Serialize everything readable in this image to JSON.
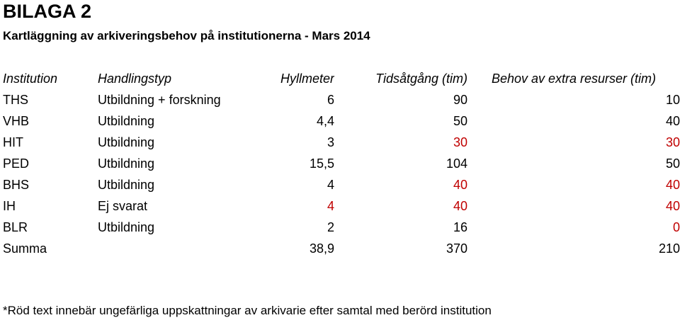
{
  "title": "BILAGA 2",
  "subtitle": "Kartläggning av arkiveringsbehov på institutionerna - Mars 2014",
  "colors": {
    "text": "#000000",
    "estimate": "#c00000"
  },
  "table": {
    "headers": [
      "Institution",
      "Handlingstyp",
      "Hyllmeter",
      "Tidsåtgång (tim)",
      "Behov av extra resurser (tim)"
    ],
    "rows": [
      {
        "institution": "THS",
        "type": "Utbildning + forskning",
        "meters": "6",
        "time": "90",
        "extra": "10"
      },
      {
        "institution": "VHB",
        "type": "Utbildning",
        "meters": "4,4",
        "time": "50",
        "extra": "40"
      },
      {
        "institution": "HIT",
        "type": "Utbildning",
        "meters": "3",
        "time": "30",
        "extra": "30"
      },
      {
        "institution": "PED",
        "type": "Utbildning",
        "meters": "15,5",
        "time": "104",
        "extra": "50"
      },
      {
        "institution": "BHS",
        "type": "Utbildning",
        "meters": "4",
        "time": "40",
        "extra": "40"
      },
      {
        "institution": "IH",
        "type": "Ej svarat",
        "meters": "4",
        "time": "40",
        "extra": "40"
      },
      {
        "institution": "BLR",
        "type": "Utbildning",
        "meters": "2",
        "time": "16",
        "extra": "0"
      }
    ],
    "total": {
      "label": "Summa",
      "meters": "38,9",
      "time": "370",
      "extra": "210"
    }
  },
  "footnote": "*Röd text innebär ungefärliga uppskattningar av arkivarie efter samtal med berörd institution"
}
